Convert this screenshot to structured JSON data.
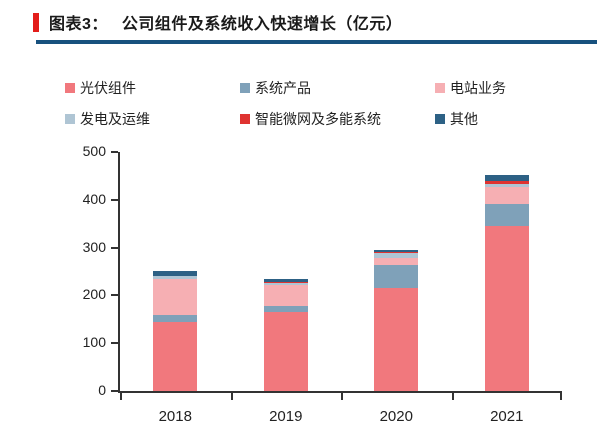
{
  "page": {
    "title_prefix": "图表3：",
    "title": "公司组件及系统收入快速增长（亿元）"
  },
  "colors": {
    "accent_red": "#e31d1a",
    "rule_blue": "#17517e",
    "axis": "#333333"
  },
  "chart_data": {
    "type": "bar",
    "stacked": true,
    "title": "公司组件及系统收入快速增长（亿元）",
    "unit": "亿元",
    "categories": [
      "2018",
      "2019",
      "2020",
      "2021"
    ],
    "series": [
      {
        "name": "光伏组件",
        "color": "#f1787d",
        "values": [
          145,
          165,
          215,
          346
        ]
      },
      {
        "name": "系统产品",
        "color": "#7fa1b9",
        "values": [
          15,
          13,
          48,
          46
        ]
      },
      {
        "name": "电站业务",
        "color": "#f6afb3",
        "values": [
          74,
          43,
          16,
          34
        ]
      },
      {
        "name": "发电及运维",
        "color": "#afc5d4",
        "values": [
          6,
          6,
          9,
          7
        ]
      },
      {
        "name": "智能微网及多能系统",
        "color": "#df3331",
        "values": [
          1,
          1,
          2,
          6
        ]
      },
      {
        "name": "其他",
        "color": "#2d6185",
        "values": [
          11,
          7,
          6,
          13
        ]
      }
    ],
    "totals": [
      252,
      235,
      296,
      452
    ],
    "ylim": [
      0,
      500
    ],
    "ytick_step": 100,
    "yticks": [
      0,
      100,
      200,
      300,
      400,
      500
    ],
    "legend_position": "top",
    "grid": false
  }
}
